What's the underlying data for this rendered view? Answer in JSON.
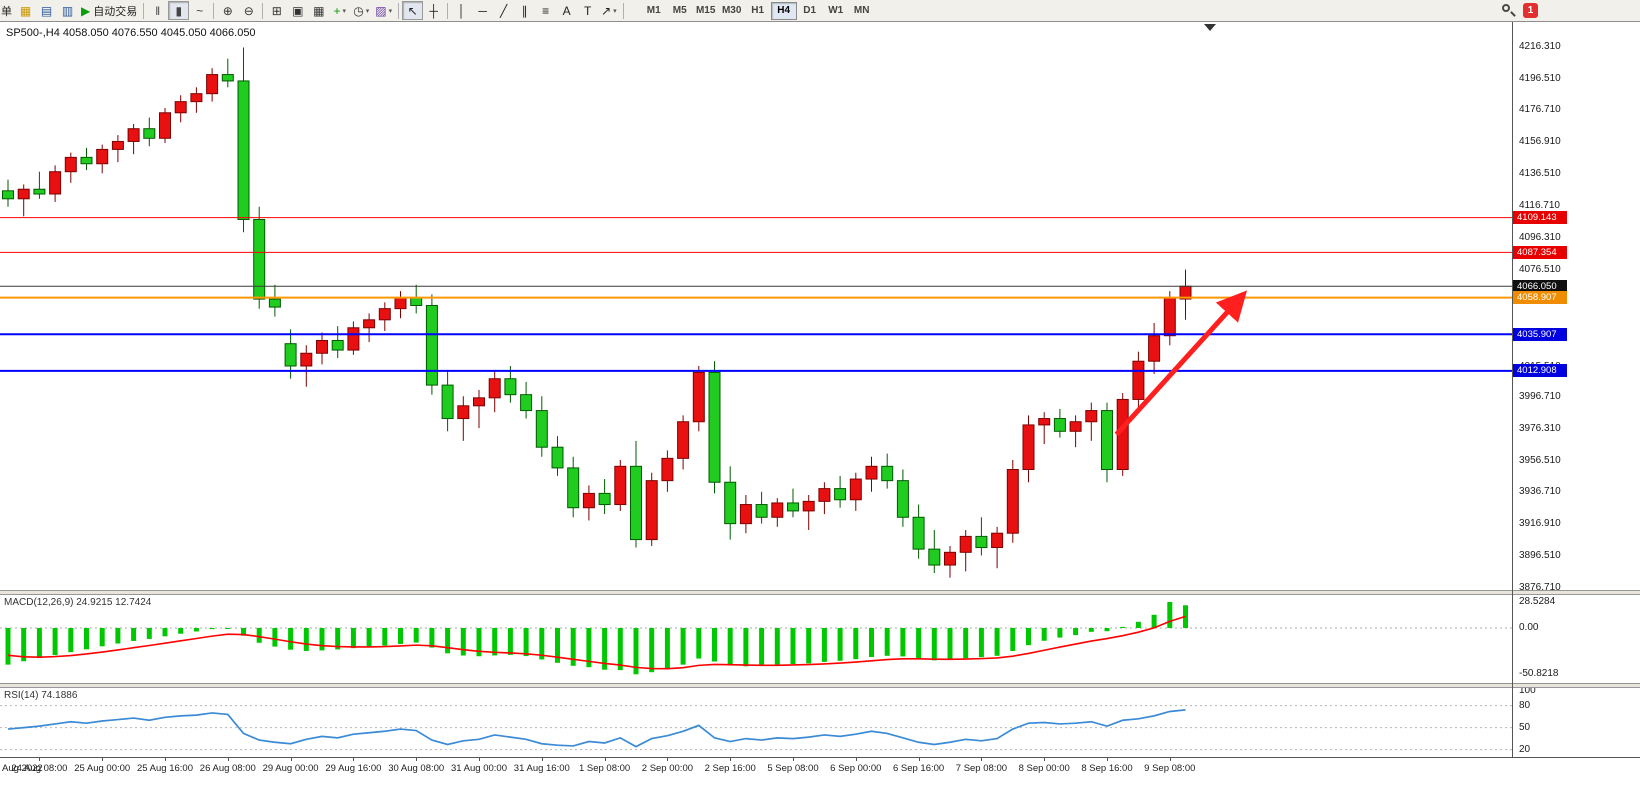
{
  "colors": {
    "up_fill": "#e81010",
    "up_stroke": "#7e0000",
    "down_fill": "#21cc21",
    "down_stroke": "#005a00",
    "macd_hist": "#00c800",
    "macd_signal": "#ff0000",
    "rsi_line": "#3a8ad6",
    "arrow": "#ff1f1f"
  },
  "toolbar": {
    "new_order_label": "单",
    "autotrading_label": "自动交易",
    "notification_badge": "1",
    "items": [
      {
        "type": "button",
        "name": "new-order-button",
        "glyph": "+",
        "color": "#0b9e0b",
        "label": "单"
      },
      {
        "type": "button",
        "name": "charts-button",
        "glyph": "▦",
        "color": "#c99700"
      },
      {
        "type": "button",
        "name": "market-watch-button",
        "glyph": "▤",
        "color": "#2b579a"
      },
      {
        "type": "button",
        "name": "navigator-button",
        "glyph": "▥",
        "color": "#2b579a"
      },
      {
        "type": "button",
        "name": "autotrading-button",
        "glyph": "▶",
        "color": "#0b9e0b",
        "label": "自动交易"
      },
      {
        "type": "sep"
      },
      {
        "type": "button",
        "name": "bar-chart-button",
        "glyph": "‖",
        "color": "#444"
      },
      {
        "type": "button",
        "name": "candlestick-button",
        "glyph": "▮",
        "color": "#444",
        "pressed": true
      },
      {
        "type": "button",
        "name": "line-chart-button",
        "glyph": "~",
        "color": "#444"
      },
      {
        "type": "sep"
      },
      {
        "type": "button",
        "name": "zoom-in-button",
        "glyph": "⊕",
        "color": "#333"
      },
      {
        "type": "button",
        "name": "zoom-out-button",
        "glyph": "⊖",
        "color": "#333"
      },
      {
        "type": "sep"
      },
      {
        "type": "button",
        "name": "tile-windows-button",
        "glyph": "⊞",
        "color": "#333"
      },
      {
        "type": "button",
        "name": "cascade-windows-button",
        "glyph": "▣",
        "color": "#333"
      },
      {
        "type": "button",
        "name": "arrange-windows-button",
        "glyph": "▦",
        "color": "#333"
      },
      {
        "type": "button",
        "name": "indicators-button",
        "glyph": "+",
        "color": "#0b9e0b",
        "dropdown": true
      },
      {
        "type": "button",
        "name": "periods-button",
        "glyph": "◷",
        "color": "#333",
        "dropdown": true
      },
      {
        "type": "button",
        "name": "templates-button",
        "glyph": "▨",
        "color": "#6a3fa0",
        "dropdown": true
      },
      {
        "type": "sep"
      },
      {
        "type": "button",
        "name": "cursor-button",
        "glyph": "↖",
        "color": "#222",
        "pressed": true
      },
      {
        "type": "button",
        "name": "crosshair-button",
        "glyph": "┼",
        "color": "#222"
      },
      {
        "type": "sep"
      },
      {
        "type": "button",
        "name": "vertical-line-button",
        "glyph": "│",
        "color": "#222"
      },
      {
        "type": "button",
        "name": "horizontal-line-button",
        "glyph": "─",
        "color": "#222"
      },
      {
        "type": "button",
        "name": "trendline-button",
        "glyph": "╱",
        "color": "#222"
      },
      {
        "type": "button",
        "name": "channel-button",
        "glyph": "∥",
        "color": "#222"
      },
      {
        "type": "button",
        "name": "fibonacci-button",
        "glyph": "≡",
        "color": "#222"
      },
      {
        "type": "button",
        "name": "text-button",
        "glyph": "A",
        "color": "#222"
      },
      {
        "type": "button",
        "name": "text-label-button",
        "glyph": "T",
        "color": "#222"
      },
      {
        "type": "button",
        "name": "arrows-button",
        "glyph": "↗",
        "color": "#222",
        "dropdown": true
      },
      {
        "type": "sep"
      }
    ],
    "timeframes": {
      "labels": [
        "M1",
        "M5",
        "M15",
        "M30",
        "H1",
        "H4",
        "D1",
        "W1",
        "MN"
      ],
      "active": "H4"
    }
  },
  "chart": {
    "title": "SP500-,H4 4058.050 4076.550 4045.050 4066.050"
  },
  "macd": {
    "label": "MACD(12,26,9) 24.9215 12.7424"
  },
  "rsi": {
    "label": "RSI(14) 74.1886"
  },
  "chart_data": {
    "type": "candlestick",
    "symbol": "SP500-",
    "timeframe": "H4",
    "last_ohlc": {
      "open": 4058.05,
      "high": 4076.55,
      "low": 4045.05,
      "close": 4066.05
    },
    "price_axis_ticks": [
      "4216.310",
      "4196.510",
      "4176.710",
      "4156.910",
      "4136.510",
      "4116.710",
      "4096.310",
      "4076.510",
      "4015.510",
      "3996.710",
      "3976.310",
      "3956.510",
      "3936.710",
      "3916.910",
      "3896.510",
      "3876.710"
    ],
    "hlines": [
      {
        "price": 4109.143,
        "color": "#ff0000",
        "width": 1,
        "tag": "4109.143",
        "tag_bg": "#e80000"
      },
      {
        "price": 4087.354,
        "color": "#ff0000",
        "width": 1,
        "tag": "4087.354",
        "tag_bg": "#e80000"
      },
      {
        "price": 4066.05,
        "color": "#3a3a3a",
        "width": 1,
        "tag": "4066.050",
        "tag_bg": "#101010"
      },
      {
        "price": 4058.907,
        "color": "#ff9800",
        "width": 2,
        "tag": "4058.907",
        "tag_bg": "#f08c00"
      },
      {
        "price": 4035.907,
        "color": "#0000ff",
        "width": 2,
        "tag": "4035.907",
        "tag_bg": "#0000e0"
      },
      {
        "price": 4012.908,
        "color": "#0000ff",
        "width": 2,
        "tag": "4012.908",
        "tag_bg": "#0000e0"
      }
    ],
    "ohlc": [
      [
        4126,
        4133,
        4116,
        4121
      ],
      [
        4121,
        4130,
        4110,
        4127
      ],
      [
        4127,
        4138,
        4121,
        4124
      ],
      [
        4124,
        4142,
        4119,
        4138
      ],
      [
        4138,
        4150,
        4131,
        4147
      ],
      [
        4147,
        4153,
        4139,
        4143
      ],
      [
        4143,
        4155,
        4137,
        4152
      ],
      [
        4152,
        4161,
        4144,
        4157
      ],
      [
        4157,
        4168,
        4149,
        4165
      ],
      [
        4165,
        4172,
        4154,
        4159
      ],
      [
        4159,
        4178,
        4156,
        4175
      ],
      [
        4175,
        4186,
        4169,
        4182
      ],
      [
        4182,
        4191,
        4175,
        4187
      ],
      [
        4187,
        4203,
        4182,
        4199
      ],
      [
        4199,
        4209,
        4191,
        4195
      ],
      [
        4195,
        4216,
        4100,
        4108
      ],
      [
        4108,
        4116,
        4052,
        4058
      ],
      [
        4058,
        4067,
        4047,
        4053
      ],
      [
        4030,
        4039,
        4008,
        4016
      ],
      [
        4016,
        4029,
        4003,
        4024
      ],
      [
        4024,
        4037,
        4017,
        4032
      ],
      [
        4032,
        4041,
        4021,
        4026
      ],
      [
        4026,
        4044,
        4023,
        4040
      ],
      [
        4040,
        4049,
        4031,
        4045
      ],
      [
        4045,
        4056,
        4038,
        4052
      ],
      [
        4052,
        4063,
        4046,
        4059
      ],
      [
        4059,
        4067,
        4049,
        4054
      ],
      [
        4054,
        4061,
        3998,
        4004
      ],
      [
        4004,
        4013,
        3975,
        3983
      ],
      [
        3983,
        3997,
        3969,
        3991
      ],
      [
        3991,
        4001,
        3977,
        3996
      ],
      [
        3996,
        4013,
        3987,
        4008
      ],
      [
        4008,
        4016,
        3993,
        3998
      ],
      [
        3998,
        4006,
        3983,
        3988
      ],
      [
        3988,
        3997,
        3959,
        3965
      ],
      [
        3965,
        3972,
        3947,
        3952
      ],
      [
        3952,
        3959,
        3921,
        3927
      ],
      [
        3927,
        3941,
        3919,
        3936
      ],
      [
        3936,
        3945,
        3923,
        3929
      ],
      [
        3929,
        3957,
        3925,
        3953
      ],
      [
        3953,
        3969,
        3902,
        3907
      ],
      [
        3907,
        3949,
        3903,
        3944
      ],
      [
        3944,
        3963,
        3937,
        3958
      ],
      [
        3958,
        3985,
        3951,
        3981
      ],
      [
        3981,
        4016,
        3975,
        4012
      ],
      [
        4012,
        4019,
        3936,
        3943
      ],
      [
        3943,
        3953,
        3907,
        3917
      ],
      [
        3917,
        3935,
        3911,
        3929
      ],
      [
        3929,
        3937,
        3917,
        3921
      ],
      [
        3921,
        3933,
        3915,
        3930
      ],
      [
        3930,
        3939,
        3921,
        3925
      ],
      [
        3925,
        3935,
        3913,
        3931
      ],
      [
        3931,
        3943,
        3923,
        3939
      ],
      [
        3939,
        3947,
        3927,
        3932
      ],
      [
        3932,
        3949,
        3925,
        3945
      ],
      [
        3945,
        3959,
        3937,
        3953
      ],
      [
        3953,
        3961,
        3939,
        3944
      ],
      [
        3944,
        3951,
        3915,
        3921
      ],
      [
        3921,
        3929,
        3895,
        3901
      ],
      [
        3901,
        3913,
        3886,
        3891
      ],
      [
        3891,
        3903,
        3883,
        3899
      ],
      [
        3899,
        3913,
        3887,
        3909
      ],
      [
        3909,
        3921,
        3897,
        3902
      ],
      [
        3902,
        3915,
        3889,
        3911
      ],
      [
        3911,
        3957,
        3905,
        3951
      ],
      [
        3951,
        3985,
        3943,
        3979
      ],
      [
        3979,
        3987,
        3967,
        3983
      ],
      [
        3983,
        3989,
        3971,
        3975
      ],
      [
        3975,
        3985,
        3965,
        3981
      ],
      [
        3981,
        3993,
        3969,
        3988
      ],
      [
        3988,
        3993,
        3943,
        3951
      ],
      [
        3951,
        3999,
        3947,
        3995
      ],
      [
        3995,
        4025,
        3989,
        4019
      ],
      [
        4019,
        4043,
        4011,
        4035
      ],
      [
        4035,
        4063,
        4029,
        4059
      ],
      [
        4058.05,
        4076.55,
        4045.05,
        4066.05
      ]
    ],
    "time_labels": [
      "Aug 2022",
      "24 Aug 08:00",
      "25 Aug 00:00",
      "25 Aug 16:00",
      "26 Aug 08:00",
      "29 Aug 00:00",
      "29 Aug 16:00",
      "30 Aug 08:00",
      "31 Aug 00:00",
      "31 Aug 16:00",
      "1 Sep 08:00",
      "2 Sep 00:00",
      "2 Sep 16:00",
      "5 Sep 08:00",
      "6 Sep 00:00",
      "6 Sep 16:00",
      "7 Sep 08:00",
      "8 Sep 00:00",
      "8 Sep 16:00",
      "9 Sep 08:00"
    ],
    "first_label_bar": 2,
    "label_step": 4,
    "macd": {
      "scale": [
        "28.5284",
        "0.00",
        "-50.8218"
      ],
      "hist": [
        -40.2,
        -36.5,
        -33,
        -29.8,
        -26.5,
        -23.4,
        -20.1,
        -17,
        -14.2,
        -12,
        -9.1,
        -6.3,
        -3.8,
        -1.2,
        -0.5,
        -8.5,
        -16.2,
        -20.4,
        -23.8,
        -25.2,
        -24.6,
        -23.5,
        -22.1,
        -20.8,
        -19.2,
        -17.5,
        -16,
        -21.5,
        -27.8,
        -30.2,
        -31,
        -30.1,
        -29.5,
        -30.8,
        -34.5,
        -38.2,
        -41.5,
        -43,
        -45.8,
        -46.2,
        -50.8218,
        -48.5,
        -45,
        -40.2,
        -33.5,
        -36.8,
        -41.2,
        -42,
        -41.5,
        -40.8,
        -39.5,
        -38.8,
        -37.2,
        -36,
        -34.2,
        -31.8,
        -30.5,
        -31.2,
        -33.8,
        -35.5,
        -35,
        -33.2,
        -32,
        -30.5,
        -25.2,
        -18.8,
        -14,
        -10.5,
        -7.8,
        -4.2,
        -3.5,
        1.2,
        6.8,
        14.5,
        28.5284,
        24.9215
      ],
      "signal": [
        -30,
        -31.6,
        -32,
        -31.4,
        -30.2,
        -28.5,
        -26.4,
        -24.1,
        -21.6,
        -19.2,
        -16.7,
        -14.1,
        -11.5,
        -8.9,
        -6.8,
        -7.2,
        -9.5,
        -12.2,
        -15.1,
        -17.6,
        -19.4,
        -20.4,
        -20.8,
        -20.8,
        -20.4,
        -19.7,
        -18.8,
        -19.5,
        -21.6,
        -23.8,
        -25.6,
        -26.7,
        -27.4,
        -28.3,
        -29.9,
        -32,
        -34.4,
        -36.6,
        -38.9,
        -40.7,
        -43.2,
        -44.5,
        -44.6,
        -43.5,
        -41,
        -40,
        -40.3,
        -40.7,
        -40.9,
        -40.9,
        -40.5,
        -40.1,
        -39.4,
        -38.5,
        -37.4,
        -36,
        -34.6,
        -33.8,
        -33.8,
        -34.2,
        -34.4,
        -34.1,
        -33.6,
        -32.8,
        -30.9,
        -27.9,
        -24.4,
        -20.9,
        -17.6,
        -14.3,
        -11.6,
        -8.4,
        -4.6,
        0.2,
        7.3,
        12.7424
      ]
    },
    "rsi": {
      "scale": [
        "100",
        "80",
        "50",
        "20"
      ],
      "levels": [
        80,
        50,
        20
      ],
      "values": [
        48,
        50,
        52,
        55,
        58,
        56,
        59,
        61,
        63,
        60,
        64,
        66,
        67,
        70,
        68,
        42,
        33,
        30,
        28,
        34,
        38,
        36,
        41,
        43,
        45,
        48,
        46,
        33,
        27,
        32,
        34,
        40,
        37,
        34,
        28,
        26,
        25,
        31,
        29,
        36,
        24,
        35,
        39,
        45,
        53,
        36,
        31,
        35,
        33,
        36,
        35,
        37,
        40,
        38,
        41,
        45,
        42,
        36,
        30,
        27,
        30,
        34,
        32,
        35,
        48,
        56,
        57,
        55,
        56,
        58,
        52,
        60,
        62,
        66,
        72,
        74.1886
      ]
    },
    "annotations": [
      {
        "type": "arrow",
        "from_bar": 70.6,
        "from_price": 3973,
        "to_bar": 78.6,
        "to_price": 4060,
        "color": "#ff1f1f"
      }
    ]
  }
}
